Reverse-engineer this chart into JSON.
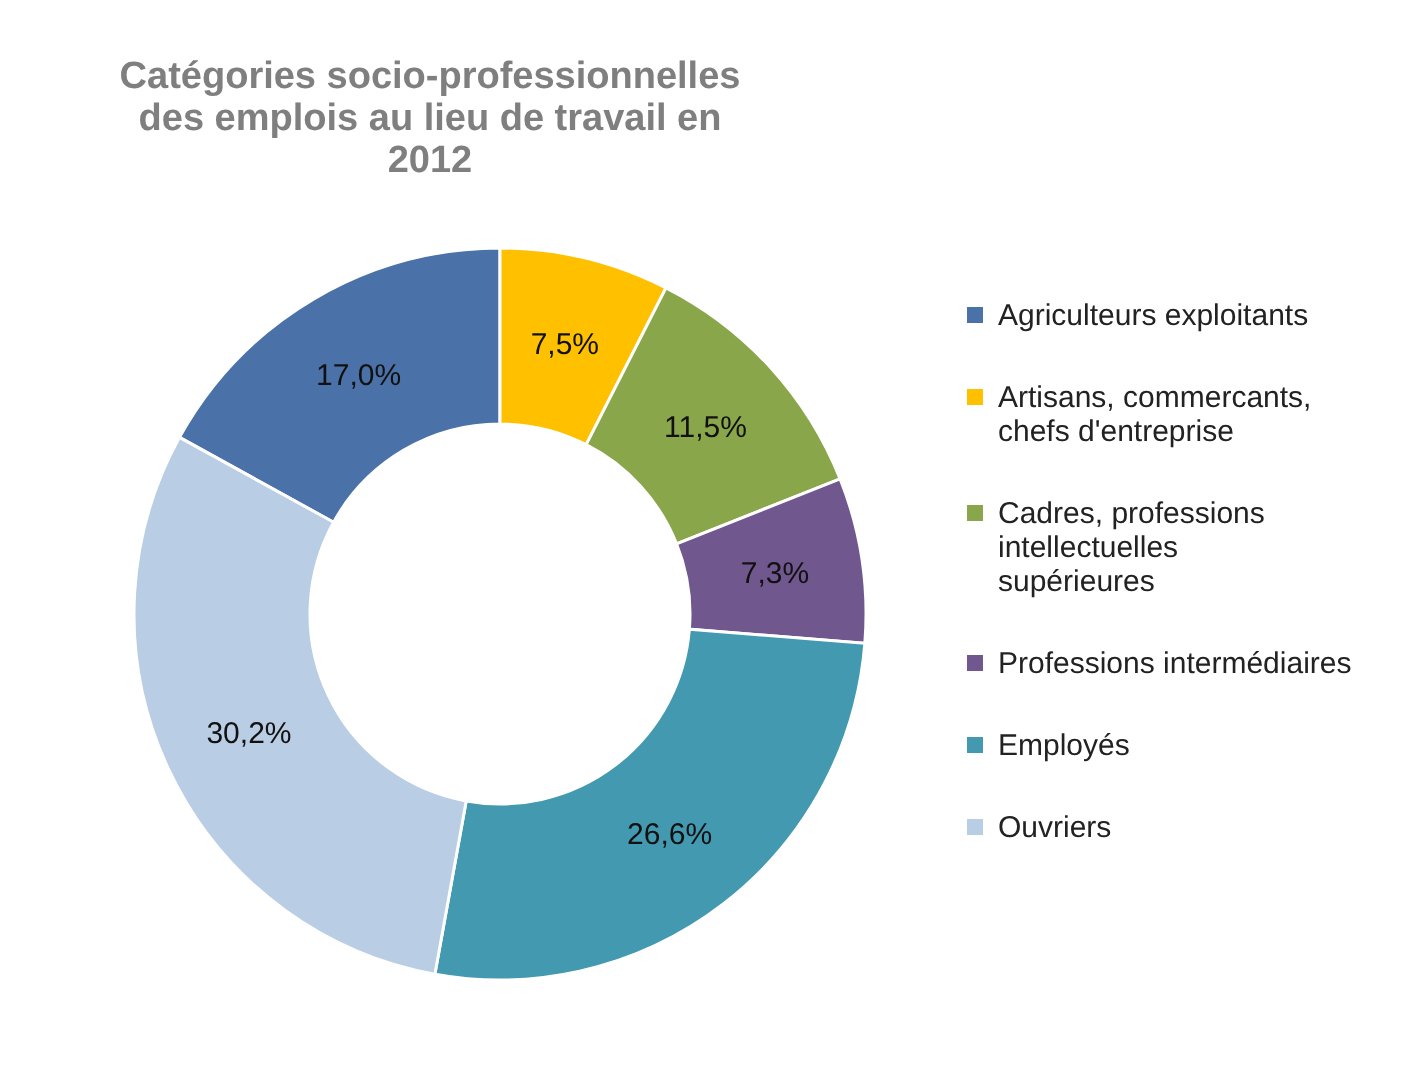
{
  "chart_data": {
    "type": "donut",
    "title": "Catégories socio-professionnelles des emplois au lieu de travail en 2012",
    "categories": [
      "Agriculteurs exploitants",
      "Artisans, commercants, chefs d'entreprise",
      "Cadres, professions intellectuelles supérieures",
      "Professions intermédiaires",
      "Employés",
      "Ouvriers"
    ],
    "values": [
      17.0,
      7.5,
      11.5,
      7.3,
      26.6,
      30.2
    ],
    "value_labels": [
      "17,0%",
      "7,5%",
      "11,5%",
      "7,3%",
      "26,6%",
      "30,2%"
    ],
    "colors": [
      "#4a72a8",
      "#ffc000",
      "#8aa64a",
      "#70588f",
      "#4299b0",
      "#b9cde5"
    ],
    "legend": "right"
  }
}
